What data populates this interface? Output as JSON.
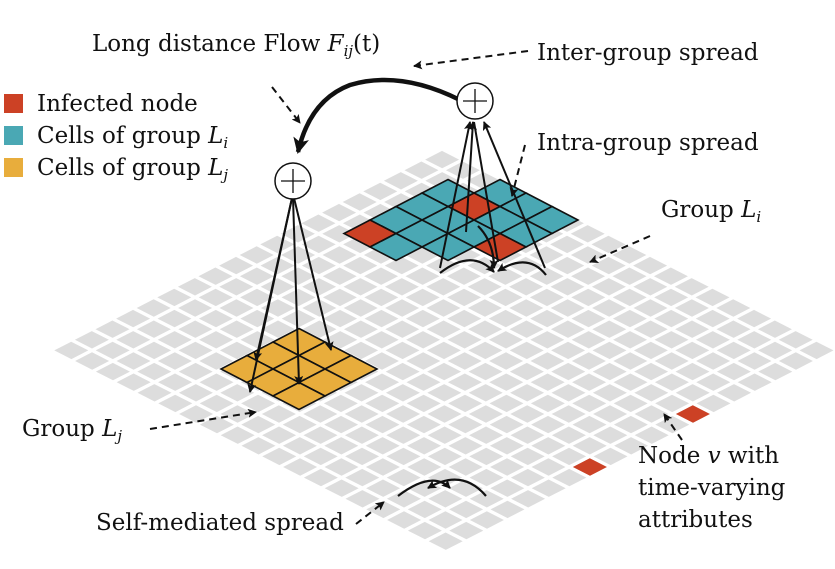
{
  "legend": {
    "items": [
      {
        "label": "Infected node",
        "color": "#cc4125"
      },
      {
        "label": "Cells of group ",
        "math": "L",
        "sub": "i",
        "color": "#4aa8b4"
      },
      {
        "label": "Cells of group ",
        "math": "L",
        "sub": "j",
        "color": "#e8ad3c"
      }
    ]
  },
  "labels": {
    "long_distance_flow": "Long distance Flow ",
    "flow_math": "F",
    "flow_sub": "ij",
    "flow_arg": "(t)",
    "inter_group": "Inter-group spread",
    "intra_group": "Intra-group spread",
    "group_i": "Group ",
    "group_i_math": "L",
    "group_i_sub": "i",
    "group_j": "Group ",
    "group_j_math": "L",
    "group_j_sub": "j",
    "node_line1_a": "Node ",
    "node_line1_math": "v",
    "node_line1_b": " with",
    "node_line2": "time-varying",
    "node_line3": "attributes",
    "self_mediated": "Self-mediated spread"
  },
  "colors": {
    "grid": "#dddddd",
    "infected": "#cc4125",
    "group_i": "#4aa8b4",
    "group_j": "#e8ad3c",
    "stroke": "#111111"
  },
  "icons": {
    "aggregator": "circled-plus-icon"
  }
}
